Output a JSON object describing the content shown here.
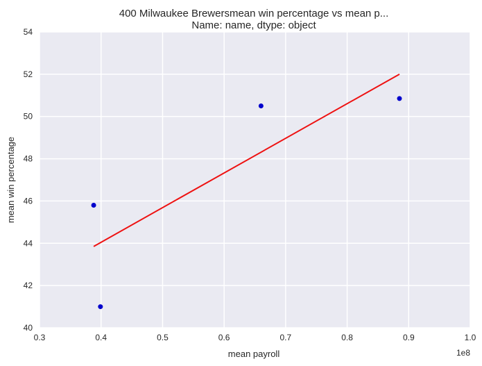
{
  "chart_data": {
    "type": "scatter",
    "title_line1": "400    Milwaukee Brewersmean win percentage vs mean p...",
    "title_line2": "Name: name, dtype: object",
    "xlabel": "mean payroll",
    "ylabel": "mean win percentage",
    "x_offset_label": "1e8",
    "xlim": [
      0.3,
      1.0
    ],
    "ylim": [
      40,
      54
    ],
    "xticks": [
      "0.3",
      "0.4",
      "0.5",
      "0.6",
      "0.7",
      "0.8",
      "0.9",
      "1.0"
    ],
    "yticks": [
      "40",
      "42",
      "44",
      "46",
      "48",
      "50",
      "52",
      "54"
    ],
    "grid": true,
    "background": "#eaeaf2",
    "grid_color": "#ffffff",
    "point_color": "#0000cc",
    "line_color": "#ee1111",
    "points": [
      {
        "x": 0.388,
        "y": 45.8
      },
      {
        "x": 0.399,
        "y": 41.0
      },
      {
        "x": 0.66,
        "y": 50.5
      },
      {
        "x": 0.885,
        "y": 50.85
      }
    ],
    "fit_line": [
      {
        "x": 0.388,
        "y": 43.85
      },
      {
        "x": 0.885,
        "y": 52.0
      }
    ]
  }
}
